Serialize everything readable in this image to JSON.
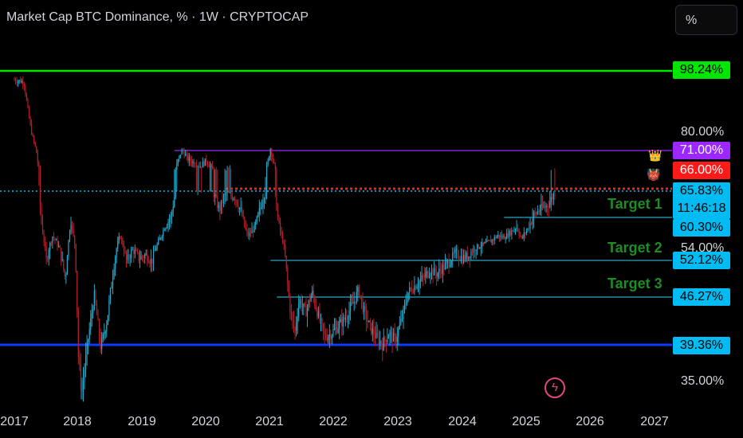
{
  "header": {
    "title": "Market Cap BTC Dominance, % · 1W · CRYPTOCAP",
    "scale_button": "%"
  },
  "price_axis": {
    "labels": [
      "80.00%",
      "54.00%",
      "35.00%"
    ],
    "tags": {
      "top": {
        "text": "98.24%",
        "bg": "#00e600",
        "fg": "#000000"
      },
      "purple": {
        "text": "71.00%",
        "bg": "#9c27ff",
        "fg": "#ffffff"
      },
      "red": {
        "text": "66.00%",
        "bg": "#ff1a1a",
        "fg": "#ffffff"
      },
      "current": {
        "text": "65.83%",
        "countdown": "11:46:18",
        "bg": "#00bcf2",
        "fg": "#000000"
      },
      "t1": {
        "text": "60.30%",
        "bg": "#00bcf2",
        "fg": "#000000"
      },
      "t2": {
        "text": "52.12%",
        "bg": "#00bcf2",
        "fg": "#000000"
      },
      "t3": {
        "text": "46.27%",
        "bg": "#00bcf2",
        "fg": "#000000"
      },
      "bottom": {
        "text": "39.36%",
        "bg": "#00bcf2",
        "fg": "#000000"
      }
    }
  },
  "targets": [
    "Target 1",
    "Target 2",
    "Target 3"
  ],
  "time_axis": [
    "2017",
    "2018",
    "2019",
    "2020",
    "2021",
    "2022",
    "2023",
    "2024",
    "2025",
    "2026",
    "2027"
  ],
  "colors": {
    "up": "#26a6c9",
    "down": "#b2202a",
    "green_line": "#00e600",
    "purple_line": "#9c27ff",
    "red_line": "#ff1a1a",
    "blue_line": "#0b3bff",
    "target_line": "#26a6c9",
    "current_line": "#00bcf2",
    "target_text": "#1f8b24"
  },
  "icons": {
    "crown": "crown-icon",
    "demon": "angry-face-icon",
    "bolt": "lightning-icon"
  },
  "chart_data": {
    "type": "candlestick",
    "title": "Market Cap BTC Dominance, % · 1W · CRYPTOCAP",
    "y_unit": "%",
    "x_range": [
      2017,
      2027
    ],
    "y_ticks": [
      80,
      54,
      35
    ],
    "horizontal_levels": [
      {
        "value": 98.24,
        "color": "#00e600"
      },
      {
        "value": 71.0,
        "color": "#9c27ff"
      },
      {
        "value": 66.0,
        "color": "#ff1a1a"
      },
      {
        "value": 65.83,
        "color": "#00bcf2",
        "label": "current"
      },
      {
        "value": 60.3,
        "color": "#26a6c9",
        "label": "Target 1"
      },
      {
        "value": 52.12,
        "color": "#26a6c9",
        "label": "Target 2"
      },
      {
        "value": 46.27,
        "color": "#26a6c9",
        "label": "Target 3"
      },
      {
        "value": 39.36,
        "color": "#0b3bff"
      }
    ],
    "path": [
      [
        2017.0,
        95.5
      ],
      [
        2017.15,
        95.0
      ],
      [
        2017.22,
        85.5
      ],
      [
        2017.3,
        76.0
      ],
      [
        2017.4,
        64.0
      ],
      [
        2017.5,
        52.0
      ],
      [
        2017.6,
        58.0
      ],
      [
        2017.7,
        54.5
      ],
      [
        2017.8,
        49.0
      ],
      [
        2017.88,
        62.0
      ],
      [
        2017.95,
        55.0
      ],
      [
        2018.0,
        38.0
      ],
      [
        2018.05,
        33.5
      ],
      [
        2018.15,
        40.0
      ],
      [
        2018.25,
        46.5
      ],
      [
        2018.35,
        39.0
      ],
      [
        2018.45,
        43.0
      ],
      [
        2018.55,
        51.0
      ],
      [
        2018.65,
        58.0
      ],
      [
        2018.75,
        52.0
      ],
      [
        2018.85,
        54.0
      ],
      [
        2018.95,
        52.5
      ],
      [
        2019.05,
        53.0
      ],
      [
        2019.15,
        52.0
      ],
      [
        2019.25,
        56.0
      ],
      [
        2019.35,
        60.5
      ],
      [
        2019.45,
        62.0
      ],
      [
        2019.55,
        68.0
      ],
      [
        2019.62,
        71.5
      ],
      [
        2019.7,
        69.0
      ],
      [
        2019.8,
        68.0
      ],
      [
        2019.9,
        67.0
      ],
      [
        2020.0,
        68.5
      ],
      [
        2020.1,
        66.0
      ],
      [
        2020.2,
        63.0
      ],
      [
        2020.3,
        65.5
      ],
      [
        2020.45,
        65.0
      ],
      [
        2020.55,
        62.5
      ],
      [
        2020.65,
        58.0
      ],
      [
        2020.75,
        60.0
      ],
      [
        2020.85,
        63.5
      ],
      [
        2020.95,
        67.0
      ],
      [
        2021.0,
        72.0
      ],
      [
        2021.05,
        68.0
      ],
      [
        2021.12,
        61.5
      ],
      [
        2021.2,
        56.0
      ],
      [
        2021.3,
        45.0
      ],
      [
        2021.38,
        41.0
      ],
      [
        2021.45,
        46.0
      ],
      [
        2021.55,
        44.0
      ],
      [
        2021.65,
        47.0
      ],
      [
        2021.75,
        43.5
      ],
      [
        2021.85,
        40.5
      ],
      [
        2021.95,
        41.0
      ],
      [
        2022.05,
        42.0
      ],
      [
        2022.15,
        43.0
      ],
      [
        2022.3,
        45.5
      ],
      [
        2022.38,
        47.5
      ],
      [
        2022.45,
        44.5
      ],
      [
        2022.55,
        42.0
      ],
      [
        2022.65,
        40.5
      ],
      [
        2022.75,
        39.5
      ],
      [
        2022.85,
        41.0
      ],
      [
        2022.95,
        40.0
      ],
      [
        2023.05,
        43.0
      ],
      [
        2023.15,
        47.0
      ],
      [
        2023.25,
        48.0
      ],
      [
        2023.4,
        49.5
      ],
      [
        2023.5,
        50.5
      ],
      [
        2023.6,
        50.0
      ],
      [
        2023.7,
        51.0
      ],
      [
        2023.8,
        52.0
      ],
      [
        2023.9,
        53.5
      ],
      [
        2024.0,
        52.5
      ],
      [
        2024.1,
        53.0
      ],
      [
        2024.2,
        54.5
      ],
      [
        2024.35,
        55.5
      ],
      [
        2024.45,
        56.5
      ],
      [
        2024.55,
        58.0
      ],
      [
        2024.65,
        57.5
      ],
      [
        2024.75,
        59.0
      ],
      [
        2024.85,
        60.5
      ],
      [
        2024.92,
        57.0
      ],
      [
        2025.0,
        59.5
      ],
      [
        2025.1,
        62.0
      ],
      [
        2025.2,
        63.0
      ],
      [
        2025.3,
        63.5
      ],
      [
        2025.38,
        64.5
      ],
      [
        2025.45,
        65.83
      ]
    ]
  }
}
